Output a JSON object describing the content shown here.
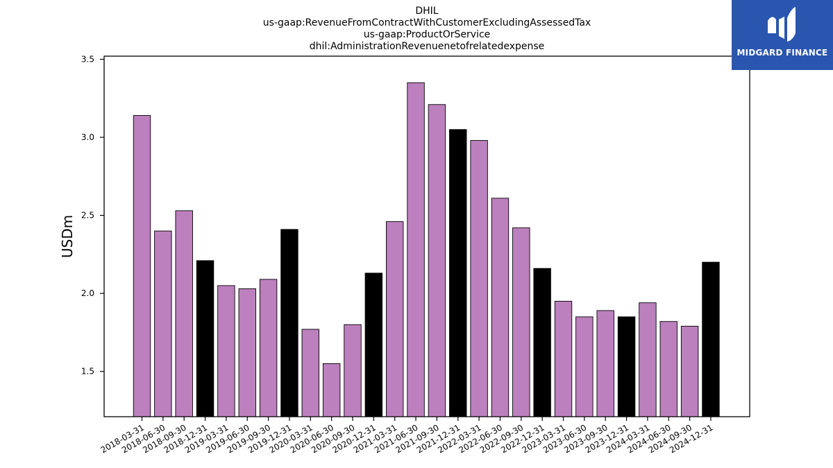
{
  "chart_data": {
    "type": "bar",
    "title_lines": [
      "DHIL",
      "us-gaap:RevenueFromContractWithCustomerExcludingAssessedTax",
      "us-gaap:ProductOrService",
      "dhil:AdministrationRevenuenetofrelatedexpense"
    ],
    "xlabel": "",
    "ylabel": "USDm",
    "ylim": [
      1.21,
      3.52
    ],
    "yticks": [
      1.5,
      2.0,
      2.5,
      3.0,
      3.5
    ],
    "ytick_labels": [
      "1.5",
      "2.0",
      "2.5",
      "3.0",
      "3.5"
    ],
    "categories": [
      "2018-03-31",
      "2018-06-30",
      "2018-09-30",
      "2018-12-31",
      "2019-03-31",
      "2019-06-30",
      "2019-09-30",
      "2019-12-31",
      "2020-03-31",
      "2020-06-30",
      "2020-09-30",
      "2020-12-31",
      "2021-03-31",
      "2021-06-30",
      "2021-09-30",
      "2021-12-31",
      "2022-03-31",
      "2022-06-30",
      "2022-09-30",
      "2022-12-31",
      "2023-03-31",
      "2023-06-30",
      "2023-09-30",
      "2023-12-31",
      "2024-03-31",
      "2024-06-30",
      "2024-09-30",
      "2024-12-31"
    ],
    "values": [
      3.14,
      2.4,
      2.53,
      2.21,
      2.05,
      2.03,
      2.09,
      2.41,
      1.77,
      1.55,
      1.8,
      2.13,
      2.46,
      3.35,
      3.21,
      3.05,
      2.98,
      2.61,
      2.42,
      2.16,
      1.95,
      1.85,
      1.89,
      1.85,
      1.94,
      1.82,
      1.79,
      2.2
    ],
    "colors": {
      "quarter": "#bb80bd",
      "year_end": "#000000",
      "edge": "#000000"
    },
    "grid": false
  },
  "logo": {
    "text": "MIDGARD FINANCE",
    "background": "#2a56b0"
  }
}
